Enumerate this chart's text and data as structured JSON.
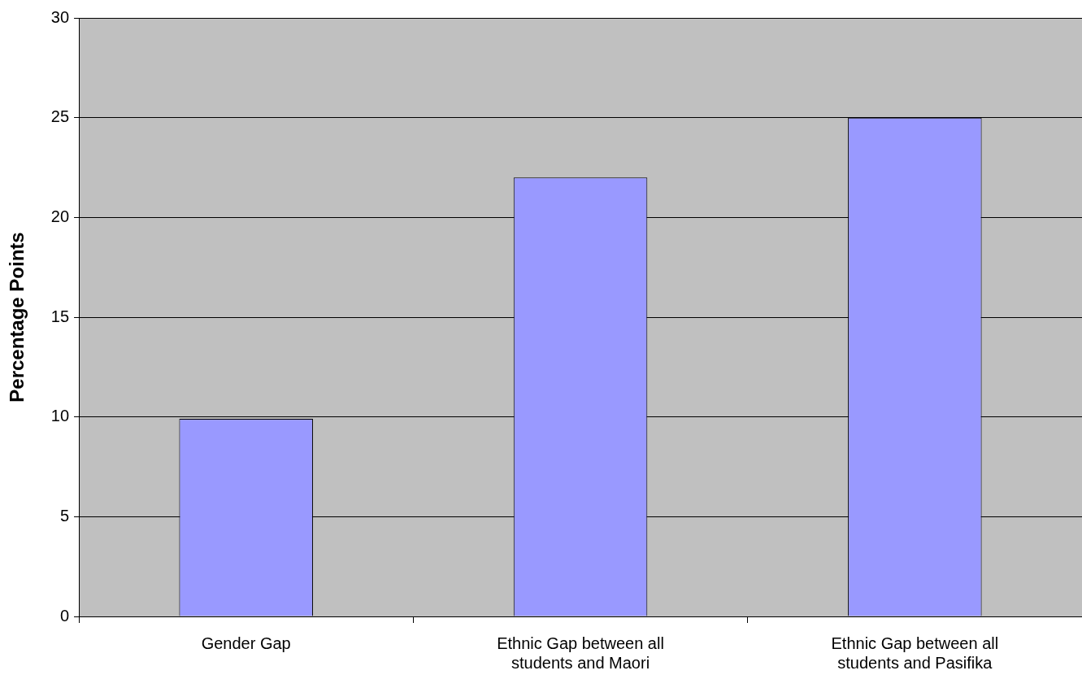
{
  "chart_data": {
    "type": "bar",
    "ylabel": "Percentage Points",
    "categories": [
      "Gender Gap",
      "Ethnic Gap between all students and Maori",
      "Ethnic Gap between all students and Pasifika"
    ],
    "values": [
      9.9,
      22,
      25
    ],
    "color": "#9999ff",
    "ylim": [
      0,
      30
    ],
    "yticks": [
      0,
      5,
      10,
      15,
      20,
      25,
      30
    ],
    "grid": "y"
  }
}
